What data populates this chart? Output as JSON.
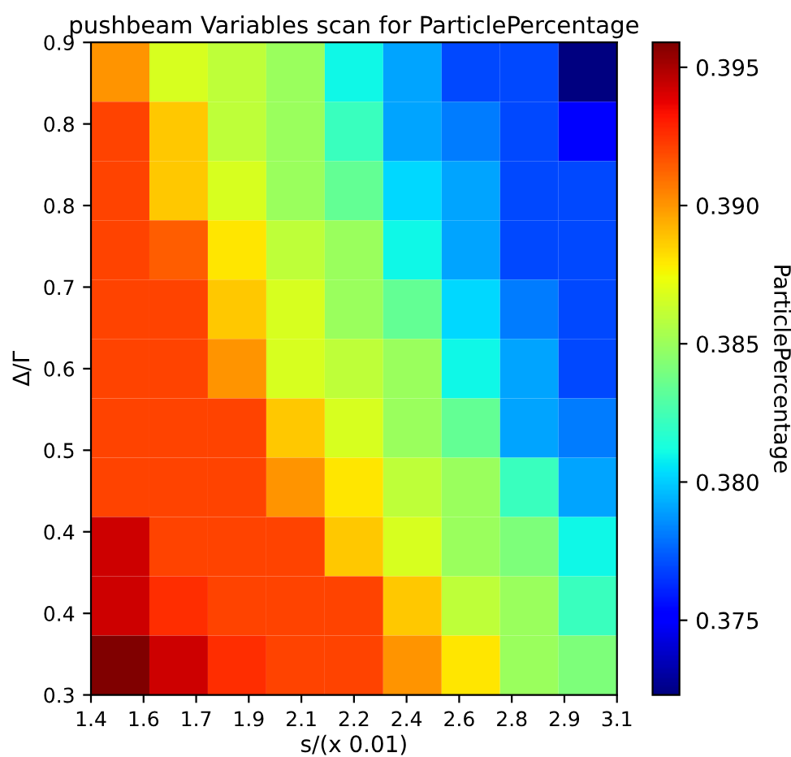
{
  "chart_data": {
    "type": "heatmap",
    "title": "pushbeam Variables scan for ParticlePercentage",
    "xlabel": "s/(x 0.01)",
    "ylabel": "Δ/Γ",
    "clabel": "ParticlePercentage",
    "xlim": [
      1.4,
      3.1
    ],
    "ylim": [
      0.3,
      0.9
    ],
    "xticks": [
      {
        "value": 1.4,
        "label": "1.4"
      },
      {
        "value": 1.57,
        "label": "1.6"
      },
      {
        "value": 1.74,
        "label": "1.7"
      },
      {
        "value": 1.91,
        "label": "1.9"
      },
      {
        "value": 2.08,
        "label": "2.1"
      },
      {
        "value": 2.25,
        "label": "2.2"
      },
      {
        "value": 2.42,
        "label": "2.4"
      },
      {
        "value": 2.59,
        "label": "2.6"
      },
      {
        "value": 2.76,
        "label": "2.8"
      },
      {
        "value": 2.93,
        "label": "2.9"
      },
      {
        "value": 3.1,
        "label": "3.1"
      }
    ],
    "yticks": [
      {
        "value": 0.3,
        "label": "0.3"
      },
      {
        "value": 0.375,
        "label": "0.4"
      },
      {
        "value": 0.45,
        "label": "0.4"
      },
      {
        "value": 0.525,
        "label": "0.5"
      },
      {
        "value": 0.6,
        "label": "0.6"
      },
      {
        "value": 0.675,
        "label": "0.7"
      },
      {
        "value": 0.75,
        "label": "0.8"
      },
      {
        "value": 0.825,
        "label": "0.8"
      },
      {
        "value": 0.9,
        "label": "0.9"
      }
    ],
    "clim": [
      0.3723,
      0.3959
    ],
    "cticks": [
      {
        "value": 0.375,
        "label": "0.375"
      },
      {
        "value": 0.38,
        "label": "0.380"
      },
      {
        "value": 0.385,
        "label": "0.385"
      },
      {
        "value": 0.39,
        "label": "0.390"
      },
      {
        "value": 0.395,
        "label": "0.395"
      }
    ],
    "cells": [
      [
        0.39,
        0.3867,
        0.386,
        0.385,
        0.381,
        0.3791,
        0.377,
        0.377,
        0.3723
      ],
      [
        0.3921,
        0.3888,
        0.386,
        0.385,
        0.3822,
        0.3791,
        0.3782,
        0.377,
        0.3749
      ],
      [
        0.3921,
        0.3888,
        0.3867,
        0.385,
        0.3834,
        0.3803,
        0.3791,
        0.377,
        0.377
      ],
      [
        0.3921,
        0.3914,
        0.388,
        0.386,
        0.385,
        0.381,
        0.3791,
        0.377,
        0.377
      ],
      [
        0.3921,
        0.3921,
        0.3888,
        0.3867,
        0.385,
        0.3834,
        0.3803,
        0.3782,
        0.377
      ],
      [
        0.3921,
        0.3921,
        0.39,
        0.3867,
        0.386,
        0.385,
        0.381,
        0.3791,
        0.377
      ],
      [
        0.3921,
        0.3921,
        0.3921,
        0.3888,
        0.3867,
        0.385,
        0.3834,
        0.3791,
        0.3782
      ],
      [
        0.3921,
        0.3921,
        0.3921,
        0.39,
        0.388,
        0.386,
        0.385,
        0.3822,
        0.3791
      ],
      [
        0.3943,
        0.3921,
        0.3921,
        0.3921,
        0.3888,
        0.3867,
        0.385,
        0.3841,
        0.381
      ],
      [
        0.3943,
        0.3926,
        0.3921,
        0.3921,
        0.3921,
        0.3888,
        0.386,
        0.385,
        0.3822
      ],
      [
        0.3959,
        0.3943,
        0.3926,
        0.3921,
        0.3921,
        0.39,
        0.388,
        0.385,
        0.3841
      ]
    ]
  }
}
